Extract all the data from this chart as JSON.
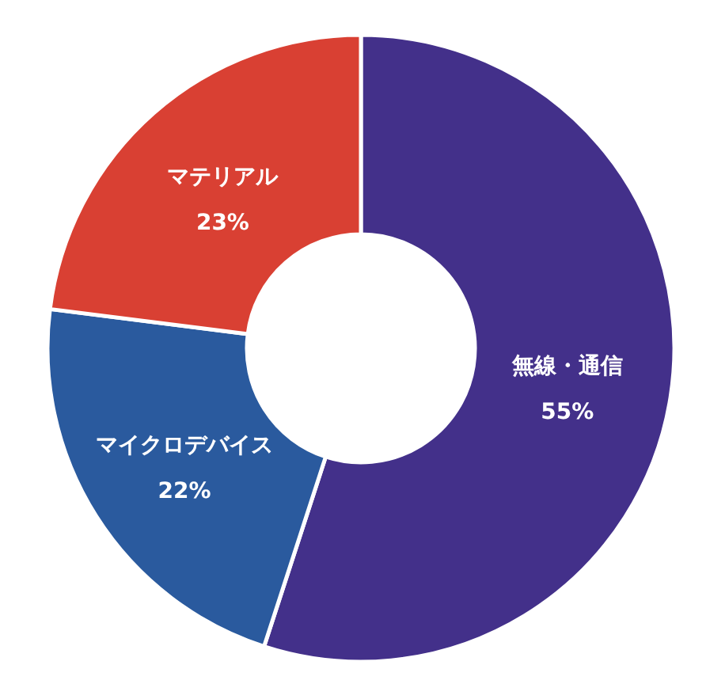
{
  "chart_data": {
    "type": "donut",
    "categories": [
      "無線・通信",
      "マイクロデバイス",
      "マテリアル"
    ],
    "values": [
      55,
      22,
      23
    ],
    "colors": [
      "#43308a",
      "#2a5a9e",
      "#d94033"
    ],
    "value_labels": [
      "55%",
      "22%",
      "23%"
    ]
  }
}
